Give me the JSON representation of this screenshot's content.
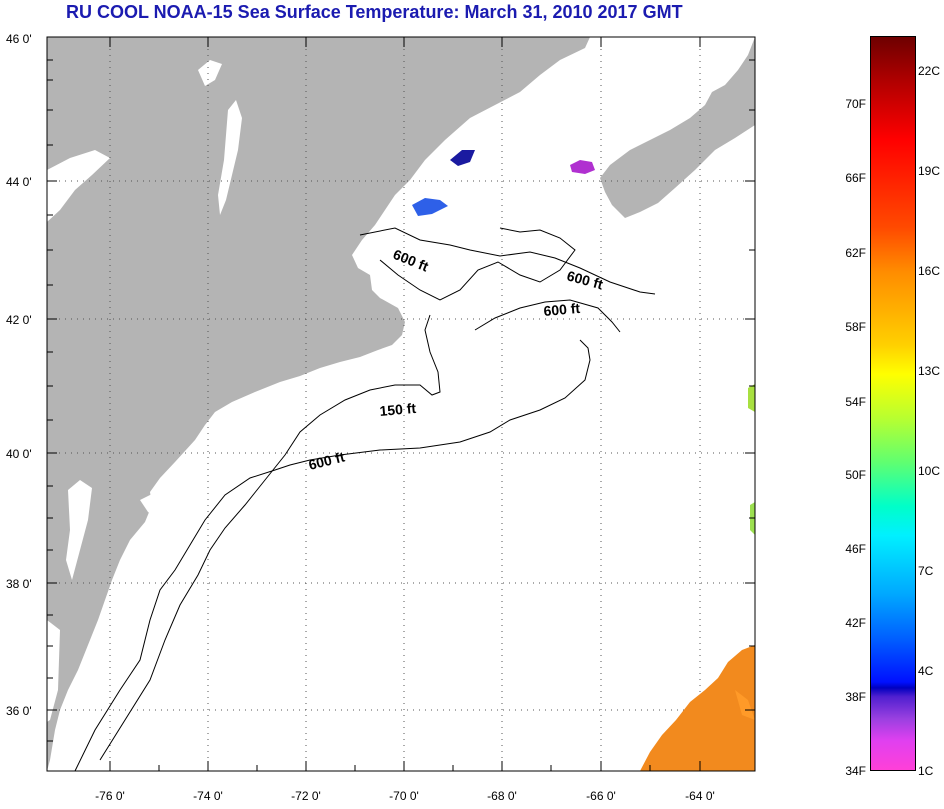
{
  "title": "RU COOL  NOAA-15  Sea Surface Temperature:  March 31, 2010 2017 GMT",
  "map": {
    "lat_labels": [
      "46 0'",
      "44 0'",
      "42 0'",
      "40 0'",
      "38 0'",
      "36 0'"
    ],
    "lon_labels": [
      "-76 0'",
      "-74 0'",
      "-72 0'",
      "-70 0'",
      "-68 0'",
      "-66 0'",
      "-64 0'"
    ],
    "contour_labels": [
      "600 ft",
      "600 ft",
      "600 ft",
      "150 ft",
      "600 ft"
    ]
  },
  "colorbar": {
    "fahrenheit": [
      "70F",
      "66F",
      "62F",
      "58F",
      "54F",
      "50F",
      "46F",
      "42F",
      "38F",
      "34F"
    ],
    "celsius": [
      "22C",
      "19C",
      "16C",
      "13C",
      "10C",
      "7C",
      "4C",
      "1C"
    ]
  },
  "colors": {
    "land": "#b4b4b4",
    "title": "#1b1bb0"
  }
}
